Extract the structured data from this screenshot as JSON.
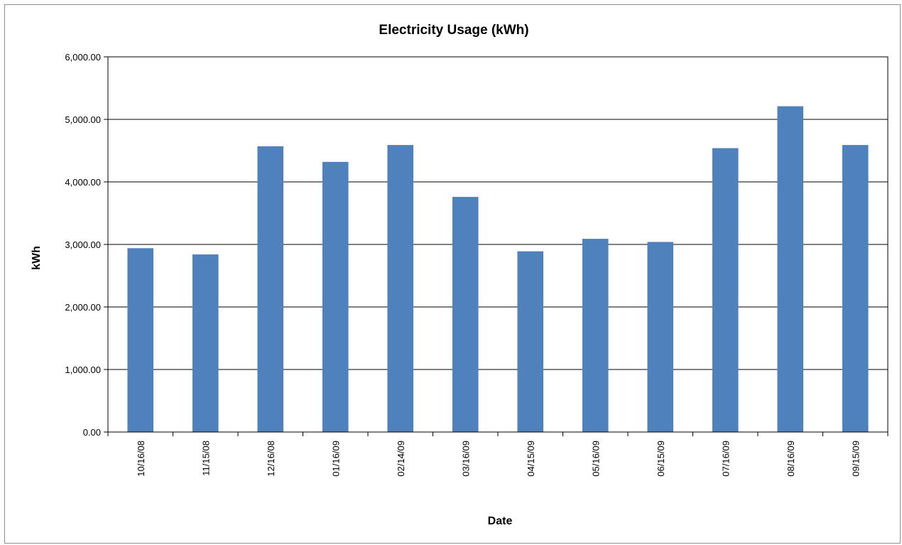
{
  "chart_data": {
    "type": "bar",
    "title": "Electricity Usage (kWh)",
    "xlabel": "Date",
    "ylabel": "kWh",
    "categories": [
      "10/16/08",
      "11/15/08",
      "12/16/08",
      "01/16/09",
      "02/14/09",
      "03/16/09",
      "04/15/09",
      "05/16/09",
      "06/15/09",
      "07/16/09",
      "08/16/09",
      "09/15/09"
    ],
    "values": [
      2940,
      2840,
      4570,
      4320,
      4590,
      3760,
      2890,
      3090,
      3040,
      4540,
      5210,
      4590
    ],
    "ylim": [
      0,
      6000
    ],
    "yticks": [
      "0.00",
      "1,000.00",
      "2,000.00",
      "3,000.00",
      "4,000.00",
      "5,000.00",
      "6,000.00"
    ],
    "grid": true,
    "legend": "none",
    "bar_color": "#4f81bd"
  }
}
